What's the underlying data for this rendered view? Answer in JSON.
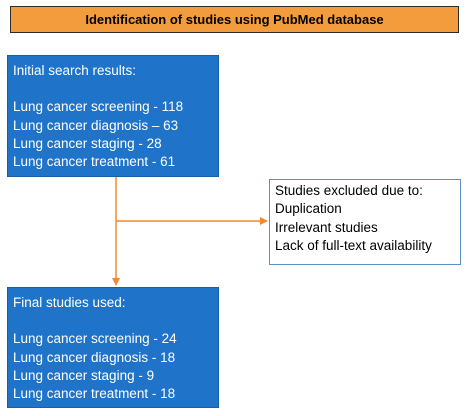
{
  "title": "Identification of studies using PubMed database",
  "initial": {
    "heading": "Initial search results:",
    "items": [
      "Lung cancer screening - 118",
      "Lung cancer diagnosis – 63",
      "Lung cancer staging - 28",
      "Lung cancer treatment - 61"
    ]
  },
  "excluded": {
    "heading": "Studies excluded due to:",
    "items": [
      "Duplication",
      "Irrelevant studies",
      "Lack of full-text availability"
    ]
  },
  "final": {
    "heading": "Final studies used:",
    "items": [
      "Lung cancer screening - 24",
      "Lung cancer diagnosis - 18",
      "Lung cancer staging - 9",
      "Lung cancer treatment - 18"
    ]
  },
  "colors": {
    "title_fill": "#f39c3d",
    "box_fill": "#1f74c9",
    "arrow": "#f08a2c",
    "exclusion_border": "#5b8fc9"
  }
}
